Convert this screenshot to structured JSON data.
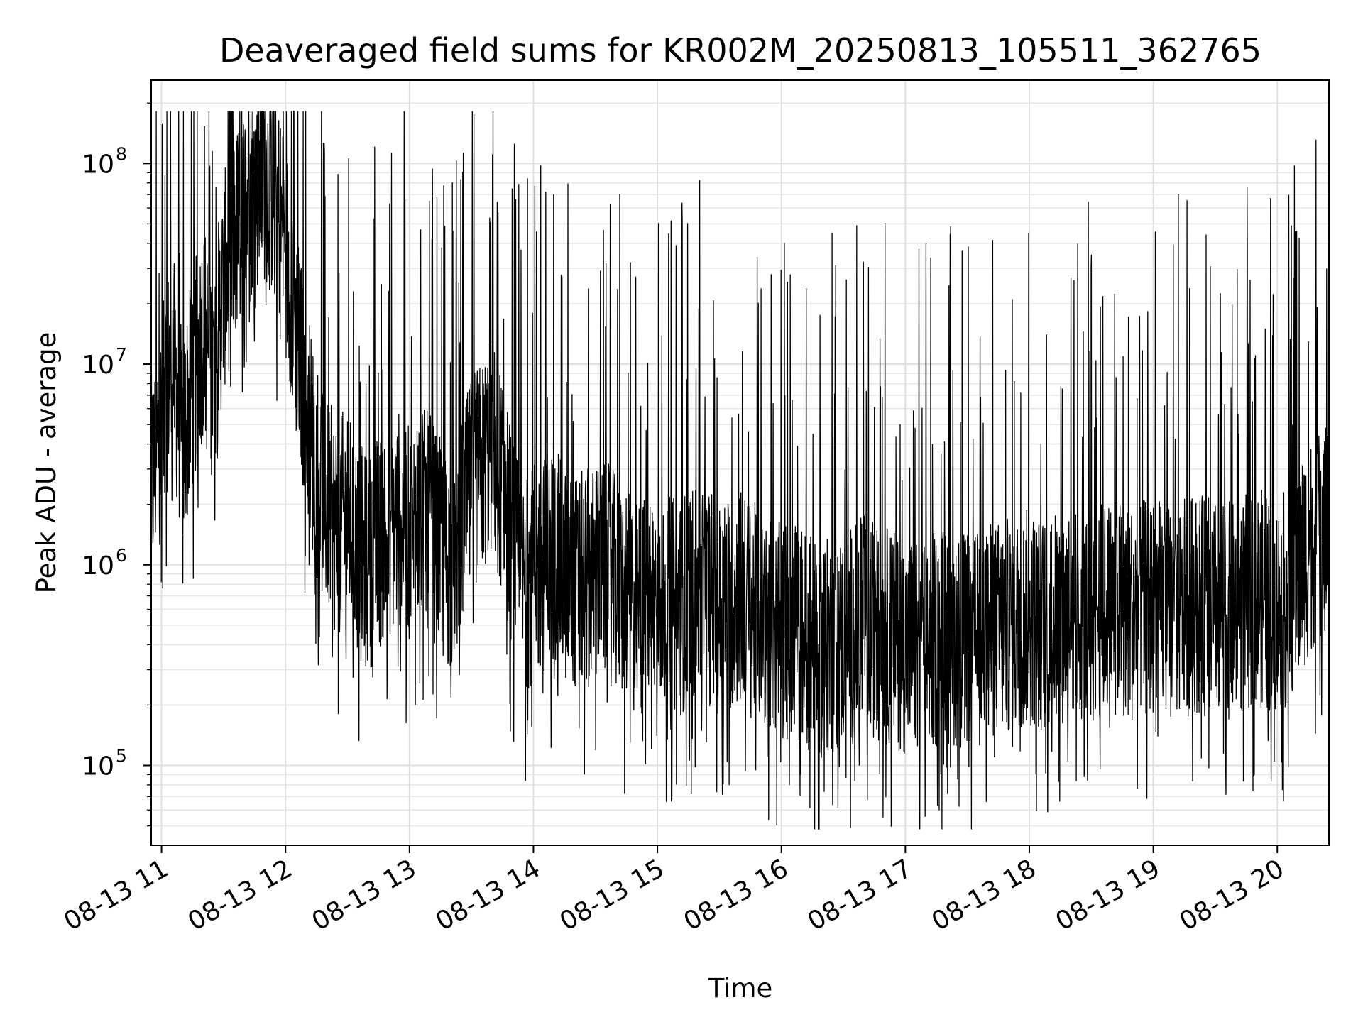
{
  "chart_data": {
    "type": "line",
    "title": "Deaveraged field sums for KR002M_20250813_105511_362765",
    "xlabel": "Time",
    "ylabel": "Peak ADU - average",
    "yscale": "log",
    "ylim": [
      40000,
      260000000
    ],
    "xlim": [
      "2025-08-13 10:55",
      "2025-08-13 20:25"
    ],
    "grid": true,
    "line_color": "#000000",
    "x_ticks": [
      {
        "at": "2025-08-13 11:00",
        "label": "08-13 11"
      },
      {
        "at": "2025-08-13 12:00",
        "label": "08-13 12"
      },
      {
        "at": "2025-08-13 13:00",
        "label": "08-13 13"
      },
      {
        "at": "2025-08-13 14:00",
        "label": "08-13 14"
      },
      {
        "at": "2025-08-13 15:00",
        "label": "08-13 15"
      },
      {
        "at": "2025-08-13 16:00",
        "label": "08-13 16"
      },
      {
        "at": "2025-08-13 17:00",
        "label": "08-13 17"
      },
      {
        "at": "2025-08-13 18:00",
        "label": "08-13 18"
      },
      {
        "at": "2025-08-13 19:00",
        "label": "08-13 19"
      },
      {
        "at": "2025-08-13 20:00",
        "label": "08-13 20"
      }
    ],
    "y_ticks": [
      {
        "value": 100000,
        "base": "10",
        "exp": "5"
      },
      {
        "value": 1000000,
        "base": "10",
        "exp": "6"
      },
      {
        "value": 10000000,
        "base": "10",
        "exp": "7"
      },
      {
        "value": 100000000,
        "base": "10",
        "exp": "8"
      }
    ],
    "series_points": [
      [
        "2025-08-13 10:55",
        2500000
      ],
      [
        "2025-08-13 11:00",
        5000000
      ],
      [
        "2025-08-13 11:05",
        12000000
      ],
      [
        "2025-08-13 11:10",
        4000000
      ],
      [
        "2025-08-13 11:15",
        8000000
      ],
      [
        "2025-08-13 11:20",
        15000000
      ],
      [
        "2025-08-13 11:25",
        9000000
      ],
      [
        "2025-08-13 11:30",
        25000000
      ],
      [
        "2025-08-13 11:35",
        40000000
      ],
      [
        "2025-08-13 11:40",
        60000000
      ],
      [
        "2025-08-13 11:45",
        80000000
      ],
      [
        "2025-08-13 11:50",
        90000000
      ],
      [
        "2025-08-13 11:55",
        70000000
      ],
      [
        "2025-08-13 12:00",
        40000000
      ],
      [
        "2025-08-13 12:05",
        15000000
      ],
      [
        "2025-08-13 12:10",
        6000000
      ],
      [
        "2025-08-13 12:15",
        3000000
      ],
      [
        "2025-08-13 12:20",
        2000000
      ],
      [
        "2025-08-13 12:25",
        1500000
      ],
      [
        "2025-08-13 12:30",
        1800000
      ],
      [
        "2025-08-13 12:35",
        1200000
      ],
      [
        "2025-08-13 12:40",
        1000000
      ],
      [
        "2025-08-13 12:45",
        1300000
      ],
      [
        "2025-08-13 12:50",
        1500000
      ],
      [
        "2025-08-13 12:55",
        1700000
      ],
      [
        "2025-08-13 13:00",
        1400000
      ],
      [
        "2025-08-13 13:05",
        1800000
      ],
      [
        "2025-08-13 13:10",
        1600000
      ],
      [
        "2025-08-13 13:15",
        1200000
      ],
      [
        "2025-08-13 13:20",
        1000000
      ],
      [
        "2025-08-13 13:25",
        1500000
      ],
      [
        "2025-08-13 13:30",
        2500000
      ],
      [
        "2025-08-13 13:35",
        3000000
      ],
      [
        "2025-08-13 13:40",
        4000000
      ],
      [
        "2025-08-13 13:45",
        2500000
      ],
      [
        "2025-08-13 13:50",
        1200000
      ],
      [
        "2025-08-13 13:55",
        800000
      ],
      [
        "2025-08-13 14:00",
        900000
      ],
      [
        "2025-08-13 14:05",
        1000000
      ],
      [
        "2025-08-13 14:10",
        1100000
      ],
      [
        "2025-08-13 14:15",
        900000
      ],
      [
        "2025-08-13 14:20",
        800000
      ],
      [
        "2025-08-13 14:25",
        850000
      ],
      [
        "2025-08-13 14:30",
        900000
      ],
      [
        "2025-08-13 14:35",
        950000
      ],
      [
        "2025-08-13 14:40",
        800000
      ],
      [
        "2025-08-13 14:45",
        700000
      ],
      [
        "2025-08-13 14:50",
        600000
      ],
      [
        "2025-08-13 14:55",
        650000
      ],
      [
        "2025-08-13 15:00",
        700000
      ],
      [
        "2025-08-13 15:05",
        650000
      ],
      [
        "2025-08-13 15:10",
        600000
      ],
      [
        "2025-08-13 15:15",
        700000
      ],
      [
        "2025-08-13 15:20",
        750000
      ],
      [
        "2025-08-13 15:25",
        700000
      ],
      [
        "2025-08-13 15:30",
        600000
      ],
      [
        "2025-08-13 15:35",
        650000
      ],
      [
        "2025-08-13 15:40",
        700000
      ],
      [
        "2025-08-13 15:45",
        600000
      ],
      [
        "2025-08-13 15:50",
        550000
      ],
      [
        "2025-08-13 15:55",
        500000
      ],
      [
        "2025-08-13 16:00",
        450000
      ],
      [
        "2025-08-13 16:05",
        500000
      ],
      [
        "2025-08-13 16:10",
        450000
      ],
      [
        "2025-08-13 16:15",
        400000
      ],
      [
        "2025-08-13 16:20",
        380000
      ],
      [
        "2025-08-13 16:25",
        400000
      ],
      [
        "2025-08-13 16:30",
        420000
      ],
      [
        "2025-08-13 16:35",
        450000
      ],
      [
        "2025-08-13 16:40",
        500000
      ],
      [
        "2025-08-13 16:45",
        480000
      ],
      [
        "2025-08-13 16:50",
        450000
      ],
      [
        "2025-08-13 16:55",
        420000
      ],
      [
        "2025-08-13 17:00",
        400000
      ],
      [
        "2025-08-13 17:05",
        380000
      ],
      [
        "2025-08-13 17:10",
        400000
      ],
      [
        "2025-08-13 17:15",
        420000
      ],
      [
        "2025-08-13 17:20",
        450000
      ],
      [
        "2025-08-13 17:25",
        430000
      ],
      [
        "2025-08-13 17:30",
        400000
      ],
      [
        "2025-08-13 17:35",
        420000
      ],
      [
        "2025-08-13 17:40",
        450000
      ],
      [
        "2025-08-13 17:45",
        480000
      ],
      [
        "2025-08-13 17:50",
        500000
      ],
      [
        "2025-08-13 17:55",
        520000
      ],
      [
        "2025-08-13 18:00",
        550000
      ],
      [
        "2025-08-13 18:05",
        520000
      ],
      [
        "2025-08-13 18:10",
        500000
      ],
      [
        "2025-08-13 18:15",
        550000
      ],
      [
        "2025-08-13 18:20",
        600000
      ],
      [
        "2025-08-13 18:25",
        580000
      ],
      [
        "2025-08-13 18:30",
        550000
      ],
      [
        "2025-08-13 18:35",
        600000
      ],
      [
        "2025-08-13 18:40",
        620000
      ],
      [
        "2025-08-13 18:45",
        600000
      ],
      [
        "2025-08-13 18:50",
        580000
      ],
      [
        "2025-08-13 18:55",
        600000
      ],
      [
        "2025-08-13 19:00",
        620000
      ],
      [
        "2025-08-13 19:05",
        600000
      ],
      [
        "2025-08-13 19:10",
        580000
      ],
      [
        "2025-08-13 19:15",
        600000
      ],
      [
        "2025-08-13 19:20",
        650000
      ],
      [
        "2025-08-13 19:25",
        620000
      ],
      [
        "2025-08-13 19:30",
        600000
      ],
      [
        "2025-08-13 19:35",
        580000
      ],
      [
        "2025-08-13 19:40",
        600000
      ],
      [
        "2025-08-13 19:45",
        650000
      ],
      [
        "2025-08-13 19:50",
        700000
      ],
      [
        "2025-08-13 19:55",
        650000
      ],
      [
        "2025-08-13 20:00",
        600000
      ],
      [
        "2025-08-13 20:05",
        700000
      ],
      [
        "2025-08-13 20:10",
        900000
      ],
      [
        "2025-08-13 20:15",
        1200000
      ],
      [
        "2025-08-13 20:20",
        1500000
      ],
      [
        "2025-08-13 20:25",
        1300000
      ]
    ]
  }
}
